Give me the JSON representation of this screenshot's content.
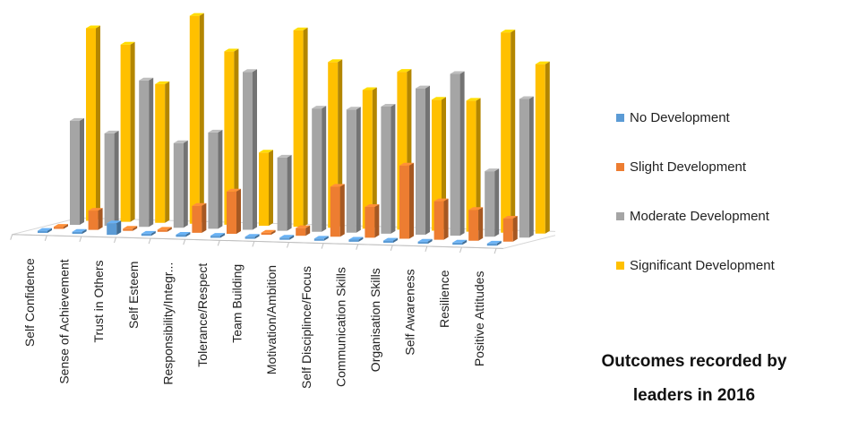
{
  "chart_data": {
    "type": "bar",
    "subtype": "3d-clustered-column",
    "title": "",
    "caption_lines": [
      "Outcomes recorded by",
      "leaders in 2016"
    ],
    "categories": [
      "Self Confidence",
      "Sense of Achievement",
      "Trust in Others",
      "Self Esteem",
      "Responsibility/Integr...",
      "Tolerance/Respect",
      "Team Building",
      "Motivation/Ambition",
      "Self Disciplince/Focus",
      "Communication Skills",
      "Organisation Skills",
      "Self Awareness",
      "Resilience",
      "Positive Attitudes"
    ],
    "series": [
      {
        "name": "No Development",
        "color": "#5B9BD5",
        "values": [
          0,
          0,
          3,
          0,
          0,
          0,
          0,
          0,
          0,
          0,
          0,
          0,
          0,
          0
        ]
      },
      {
        "name": "Slight Development",
        "color": "#ED7D31",
        "values": [
          0,
          5,
          0,
          0,
          7,
          11,
          0,
          2,
          13,
          8,
          19,
          10,
          8,
          6
        ]
      },
      {
        "name": "Moderate Development",
        "color": "#A5A5A5",
        "values": [
          27,
          24,
          38,
          22,
          25,
          41,
          19,
          32,
          32,
          33,
          38,
          42,
          17,
          36
        ]
      },
      {
        "name": "Significant Development",
        "color": "#FFC000",
        "values": [
          50,
          46,
          36,
          54,
          45,
          19,
          51,
          43,
          36,
          41,
          34,
          34,
          52,
          44
        ]
      }
    ],
    "legend_position": "right",
    "grid": false,
    "ylim": [
      0,
      55
    ]
  }
}
